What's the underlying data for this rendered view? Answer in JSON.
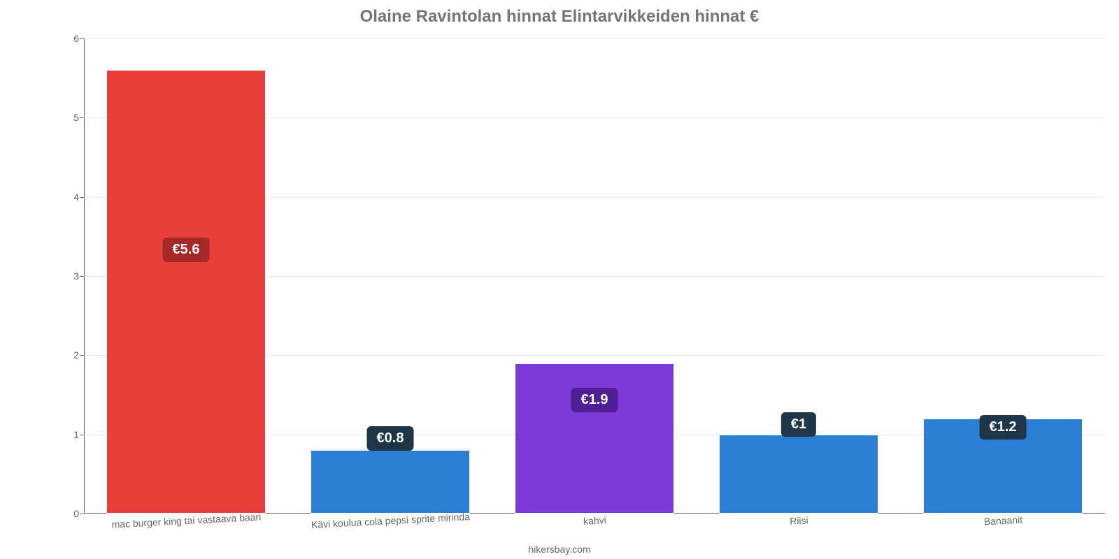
{
  "chart": {
    "type": "bar",
    "title": "Olaine Ravintolan hinnat Elintarvikkeiden hinnat €",
    "title_color": "#757575",
    "title_fontsize": 24,
    "background_color": "#ffffff",
    "axis_color": "#666666",
    "grid_color": "#eaeaea",
    "label_color": "#666666",
    "tick_fontsize": 14,
    "xlabel_fontsize": 14,
    "xlabel_rotation_deg": -3,
    "ylim": [
      0,
      6
    ],
    "ytick_step": 1,
    "yticks": [
      "0",
      "1",
      "2",
      "3",
      "4",
      "5",
      "6"
    ],
    "bar_width_pct": 78,
    "bars": [
      {
        "category": "mac burger king tai vastaava baari",
        "value": 5.6,
        "value_label": "€5.6",
        "bar_color": "#e83f3a",
        "badge_bg": "#a52926",
        "badge_text_color": "#ffffff",
        "badge_fontsize": 20,
        "badge_y_norm": 0.53
      },
      {
        "category": "Kävi koulua cola pepsi sprite mirinda",
        "value": 0.8,
        "value_label": "€0.8",
        "bar_color": "#2a7fd4",
        "badge_bg": "#1f3649",
        "badge_text_color": "#ffffff",
        "badge_fontsize": 20,
        "badge_y_norm": 0.133
      },
      {
        "category": "kahvi",
        "value": 1.9,
        "value_label": "€1.9",
        "bar_color": "#7e3ad8",
        "badge_bg": "#4f1f96",
        "badge_text_color": "#ffffff",
        "badge_fontsize": 20,
        "badge_y_norm": 0.213
      },
      {
        "category": "Riisi",
        "value": 1.0,
        "value_label": "€1",
        "bar_color": "#2a7fd4",
        "badge_bg": "#1f3649",
        "badge_text_color": "#ffffff",
        "badge_fontsize": 20,
        "badge_y_norm": 0.162
      },
      {
        "category": "Banaanit",
        "value": 1.2,
        "value_label": "€1.2",
        "bar_color": "#2a7fd4",
        "badge_bg": "#1f3649",
        "badge_text_color": "#ffffff",
        "badge_fontsize": 20,
        "badge_y_norm": 0.156
      }
    ],
    "attribution": "hikersbay.com",
    "attribution_fontsize": 14
  }
}
